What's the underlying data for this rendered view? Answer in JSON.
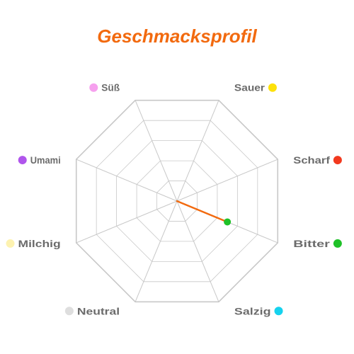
{
  "chart_data": {
    "type": "radar",
    "title": "Geschmacksprofil",
    "axes": [
      {
        "label": "Süß",
        "color": "#f6a0ee"
      },
      {
        "label": "Sauer",
        "color": "#fde10a"
      },
      {
        "label": "Scharf",
        "color": "#f2391e"
      },
      {
        "label": "Bitter",
        "color": "#1fc128"
      },
      {
        "label": "Salzig",
        "color": "#15d2ee"
      },
      {
        "label": "Neutral",
        "color": "#dedede"
      },
      {
        "label": "Milchig",
        "color": "#fdf2b0"
      },
      {
        "label": "Umami",
        "color": "#b055ec"
      }
    ],
    "series": [
      {
        "values": [
          0,
          0,
          0,
          0.5,
          0,
          0,
          0,
          0
        ]
      }
    ],
    "range": [
      0,
      1
    ],
    "grid_levels": 5,
    "grid": true,
    "colors": {
      "title": "#f26a0f",
      "line": "#f26a0f",
      "grid": "#c8c8c8"
    }
  }
}
